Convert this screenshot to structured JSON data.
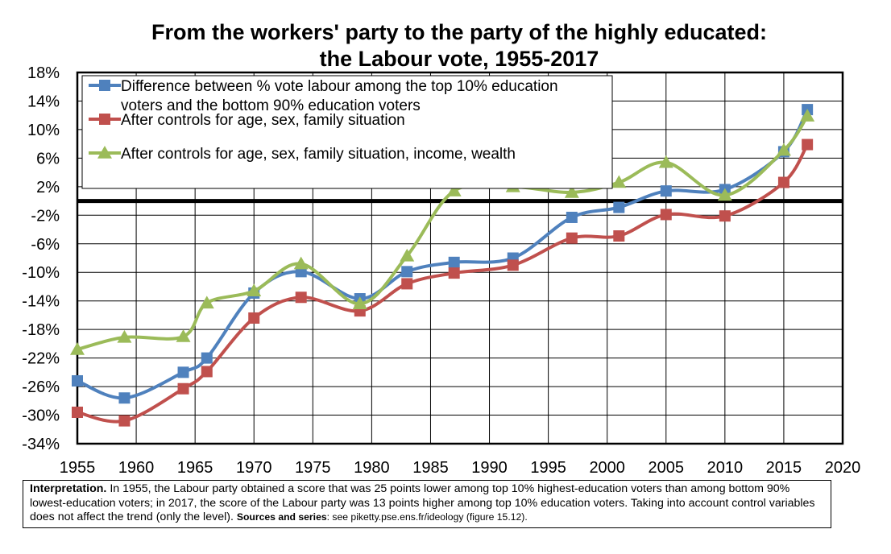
{
  "chart_data": {
    "type": "line",
    "title": [
      "From the workers' party to the party of the highly educated:",
      "the Labour vote, 1955-2017"
    ],
    "xlim": [
      1955,
      2020
    ],
    "xticks": [
      "1955",
      "1960",
      "1965",
      "1970",
      "1975",
      "1980",
      "1985",
      "1990",
      "1995",
      "2000",
      "2005",
      "2010",
      "2015",
      "2020"
    ],
    "ylim": [
      -34,
      18
    ],
    "yticks": [
      "18%",
      "14%",
      "10%",
      "6%",
      "2%",
      "-2%",
      "-6%",
      "-10%",
      "-14%",
      "-18%",
      "-22%",
      "-26%",
      "-30%",
      "-34%"
    ],
    "reference_line_y": 0,
    "grid": true,
    "legend_position": "top-left",
    "series": [
      {
        "name_lines": [
          "Difference between % vote labour among the top 10% education",
          "voters and the bottom 90% education voters"
        ],
        "color": "#4f81bd",
        "marker": "square",
        "x": [
          1955,
          1959,
          1964,
          1966,
          1970,
          1974,
          1979,
          1983,
          1987,
          1992,
          1997,
          2001,
          2005,
          2010,
          2015,
          2017
        ],
        "y": [
          -25.2,
          -27.6,
          -24.0,
          -22.0,
          -12.9,
          -9.9,
          -13.7,
          -9.9,
          -8.6,
          -8.0,
          -2.3,
          -0.9,
          1.4,
          1.6,
          6.9,
          12.8
        ]
      },
      {
        "name_lines": [
          "After controls for age, sex, family situation"
        ],
        "color": "#c0504d",
        "marker": "square",
        "x": [
          1955,
          1959,
          1964,
          1966,
          1970,
          1974,
          1979,
          1983,
          1987,
          1992,
          1997,
          2001,
          2005,
          2010,
          2015,
          2017
        ],
        "y": [
          -29.6,
          -30.8,
          -26.3,
          -23.9,
          -16.4,
          -13.5,
          -15.4,
          -11.6,
          -10.1,
          -9.0,
          -5.2,
          -4.9,
          -1.9,
          -2.1,
          2.6,
          7.9
        ]
      },
      {
        "name_lines": [
          "After controls for age, sex, family situation, income, wealth"
        ],
        "color": "#9bbb59",
        "marker": "triangle",
        "x": [
          1955,
          1959,
          1964,
          1966,
          1970,
          1974,
          1979,
          1983,
          1987,
          1992,
          1997,
          2001,
          2005,
          2010,
          2015,
          2017
        ],
        "y": [
          -20.8,
          -19.1,
          -19.0,
          -14.3,
          -12.6,
          -8.8,
          -14.4,
          -7.7,
          1.4,
          2.0,
          1.2,
          2.6,
          5.4,
          0.8,
          7.1,
          11.9
        ]
      }
    ]
  },
  "note": {
    "label": "Interpretation.",
    "text": " In 1955, the Labour party obtained a score that was 25 points lower among top 10% highest-education voters than among bottom 90% lowest-education voters; in 2017, the score of the Labour party was 13 points higher among top 10% education voters. Taking into account control variables does not affect the trend (only the level). ",
    "sources_label": "Sources and series",
    "sources_text": ": see piketty.pse.ens.fr/ideology (figure 15.12)."
  }
}
